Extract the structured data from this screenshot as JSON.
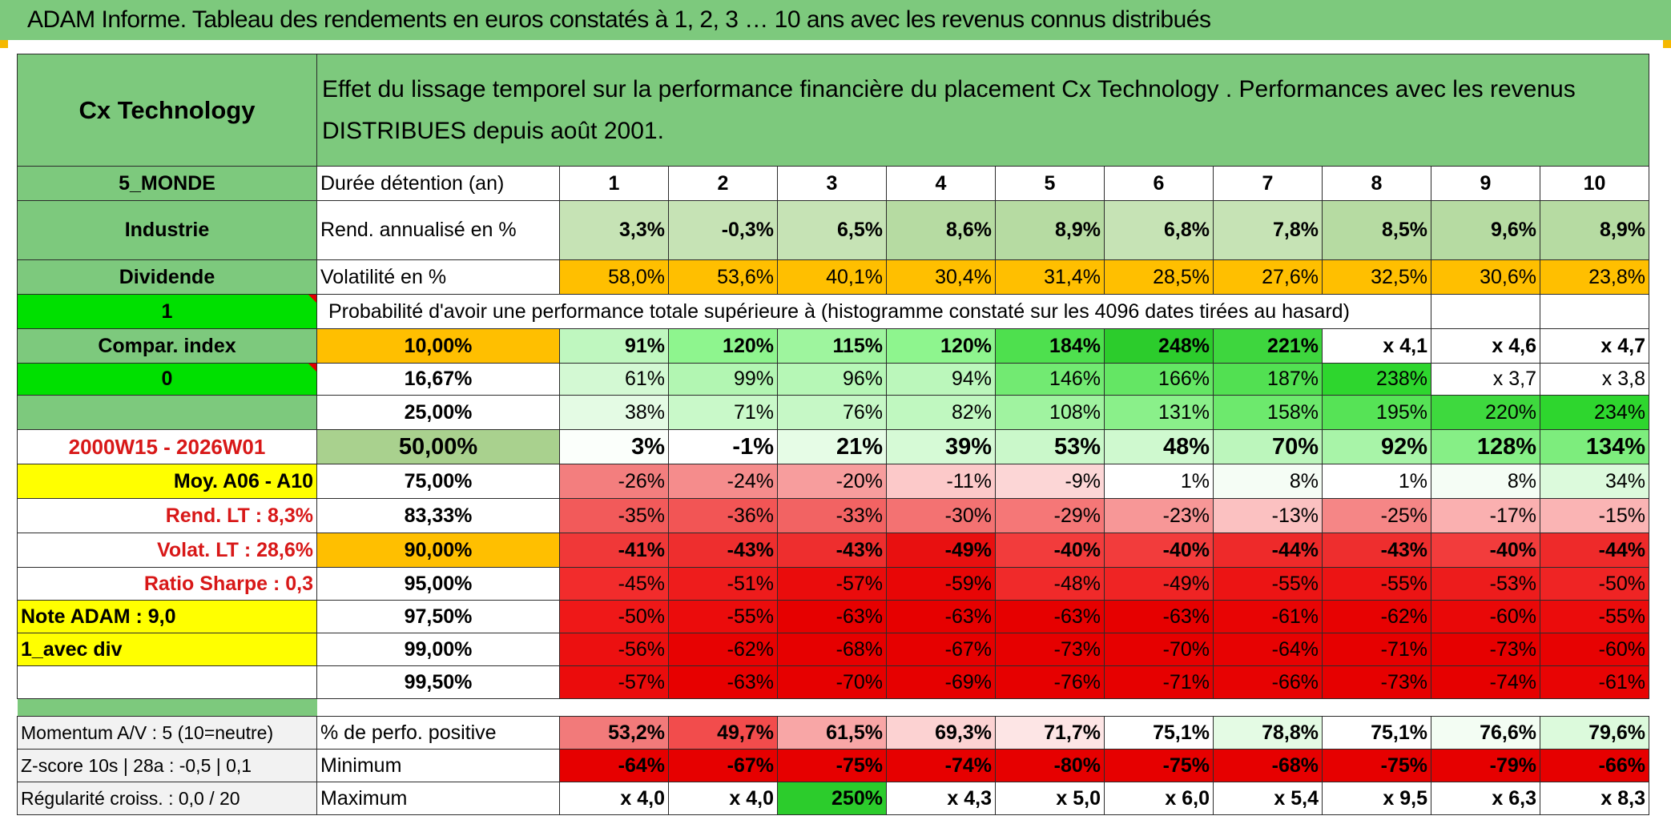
{
  "title": "ADAM Informe. Tableau des rendements en euros constatés à 1, 2, 3 … 10 ans avec les revenus connus distribués",
  "header": {
    "fund_name": "Cx Technology",
    "description": "Effet du lissage temporel sur la performance financière du placement Cx Technology . Performances avec les revenus DISTRIBUES depuis août 2001."
  },
  "sidebar": {
    "zone": "5_MONDE",
    "sector": "Industrie",
    "distribution": "Dividende",
    "flag1": "1",
    "compar_label": "Compar. index",
    "flag0": "0",
    "period": "2000W15 - 2026W01",
    "avg_label": "Moy. A06 - A10",
    "rend_lt": "Rend. LT :   8,3%",
    "volat_lt": "Volat. LT :   28,6%",
    "sharpe": "Ratio Sharpe :    0,3",
    "note": "Note ADAM : 9,0",
    "variant": "1_avec div"
  },
  "rows": {
    "duration_label": "Durée détention (an)",
    "years": [
      "1",
      "2",
      "3",
      "4",
      "5",
      "6",
      "7",
      "8",
      "9",
      "10"
    ],
    "rend_label": "Rend. annualisé en %",
    "rend": [
      "3,3%",
      "-0,3%",
      "6,5%",
      "8,6%",
      "8,9%",
      "6,8%",
      "7,8%",
      "8,5%",
      "9,6%",
      "8,9%"
    ],
    "vol_label": "Volatilité en %",
    "vol": [
      "58,0%",
      "53,6%",
      "40,1%",
      "30,4%",
      "31,4%",
      "28,5%",
      "27,6%",
      "32,5%",
      "30,6%",
      "23,8%"
    ],
    "prob_header": "Probabilité d'avoir une performance totale supérieure à (histogramme constaté sur les 4096 dates tirées au hasard)"
  },
  "quantiles": [
    {
      "pct": "10,00%",
      "vals": [
        "91%",
        "120%",
        "115%",
        "120%",
        "184%",
        "248%",
        "221%",
        "x 4,1",
        "x 4,6",
        "x 4,7"
      ]
    },
    {
      "pct": "16,67%",
      "vals": [
        "61%",
        "99%",
        "96%",
        "94%",
        "146%",
        "166%",
        "187%",
        "238%",
        "x 3,7",
        "x 3,8"
      ]
    },
    {
      "pct": "25,00%",
      "vals": [
        "38%",
        "71%",
        "76%",
        "82%",
        "108%",
        "131%",
        "158%",
        "195%",
        "220%",
        "234%"
      ]
    },
    {
      "pct": "50,00%",
      "vals": [
        "3%",
        "-1%",
        "21%",
        "39%",
        "53%",
        "48%",
        "70%",
        "92%",
        "128%",
        "134%"
      ]
    },
    {
      "pct": "75,00%",
      "vals": [
        "-26%",
        "-24%",
        "-20%",
        "-11%",
        "-9%",
        "1%",
        "8%",
        "1%",
        "8%",
        "34%"
      ]
    },
    {
      "pct": "83,33%",
      "vals": [
        "-35%",
        "-36%",
        "-33%",
        "-30%",
        "-29%",
        "-23%",
        "-13%",
        "-25%",
        "-17%",
        "-15%"
      ]
    },
    {
      "pct": "90,00%",
      "vals": [
        "-41%",
        "-43%",
        "-43%",
        "-49%",
        "-40%",
        "-40%",
        "-44%",
        "-43%",
        "-40%",
        "-44%"
      ]
    },
    {
      "pct": "95,00%",
      "vals": [
        "-45%",
        "-51%",
        "-57%",
        "-59%",
        "-48%",
        "-49%",
        "-55%",
        "-55%",
        "-53%",
        "-50%"
      ]
    },
    {
      "pct": "97,50%",
      "vals": [
        "-50%",
        "-55%",
        "-63%",
        "-63%",
        "-63%",
        "-63%",
        "-61%",
        "-62%",
        "-60%",
        "-55%"
      ]
    },
    {
      "pct": "99,00%",
      "vals": [
        "-56%",
        "-62%",
        "-68%",
        "-67%",
        "-73%",
        "-70%",
        "-64%",
        "-71%",
        "-73%",
        "-60%"
      ]
    },
    {
      "pct": "99,50%",
      "vals": [
        "-57%",
        "-63%",
        "-70%",
        "-69%",
        "-76%",
        "-71%",
        "-66%",
        "-73%",
        "-74%",
        "-61%"
      ]
    }
  ],
  "bottom": {
    "momentum": "Momentum A/V : 5 (10=neutre)",
    "zscore": "Z-score 10s | 28a : -0,5 | 0,1",
    "regularity": "Régularité croiss. : 0,0 / 20",
    "pos_label": "% de perfo. positive",
    "pos": [
      "53,2%",
      "49,7%",
      "61,5%",
      "69,3%",
      "71,7%",
      "75,1%",
      "78,8%",
      "75,1%",
      "76,6%",
      "79,6%"
    ],
    "min_label": "Minimum",
    "min": [
      "-64%",
      "-67%",
      "-75%",
      "-74%",
      "-80%",
      "-75%",
      "-68%",
      "-75%",
      "-79%",
      "-66%"
    ],
    "max_label": "Maximum",
    "max": [
      "x 4,0",
      "x 4,0",
      "250%",
      "x 4,3",
      "x 5,0",
      "x 6,0",
      "x 5,4",
      "x 9,5",
      "x 6,3",
      "x 8,3"
    ]
  },
  "colors": {
    "header_green": "#7dc97d",
    "yellow": "#ffff00",
    "orange": "#ffbf00",
    "positive_green": "#00e000",
    "negative_red": "#ff0000",
    "label_red": "#d81818"
  },
  "quantile_fills": [
    [
      "#bff7bf",
      "#8ef58e",
      "#9ef59e",
      "#8ef58e",
      "#4ee04e",
      "#2ccc2c",
      "#3ed63e",
      "#ffffff",
      "#ffffff",
      "#ffffff"
    ],
    [
      "#d3f9d3",
      "#b2f6b2",
      "#b6f7b6",
      "#bbf7bb",
      "#72ea72",
      "#64e664",
      "#52e052",
      "#2ed62e",
      "#ffffff",
      "#ffffff"
    ],
    [
      "#e4fbe4",
      "#c9f9c9",
      "#c6f8c6",
      "#c0f8c0",
      "#a0f3a0",
      "#8af08a",
      "#6de96d",
      "#56e356",
      "#3ed93e",
      "#2ed62e"
    ],
    [
      "#fbfffb",
      "#ffffff",
      "#e6fce6",
      "#d6fad6",
      "#caf8ca",
      "#cff9cf",
      "#bcf6bc",
      "#a8f4a8",
      "#86ef86",
      "#7ded7d"
    ],
    [
      "#f37e7e",
      "#f58c8c",
      "#f79d9d",
      "#fcc9c9",
      "#fcd6d6",
      "#ffffff",
      "#f5fdf5",
      "#ffffff",
      "#f5fdf5",
      "#dcfadc"
    ],
    [
      "#f25a5a",
      "#f25555",
      "#f26363",
      "#f37272",
      "#f57777",
      "#f79797",
      "#fbc1c1",
      "#f58686",
      "#fab0b0",
      "#fab4b4"
    ],
    [
      "#f03838",
      "#ee2e2e",
      "#ee2e2e",
      "#e81010",
      "#f23c3c",
      "#f23c3c",
      "#ee2a2a",
      "#ee2e2e",
      "#f23c3c",
      "#ee2a2a"
    ],
    [
      "#f22c2c",
      "#ee1c1c",
      "#ea0c0c",
      "#e80606",
      "#f02a2a",
      "#ef2424",
      "#ec1414",
      "#ec1414",
      "#ed1c1c",
      "#ef2424"
    ],
    [
      "#ef1818",
      "#eb0c0c",
      "#e60000",
      "#e60000",
      "#e60000",
      "#e60000",
      "#e80404",
      "#e70202",
      "#e90808",
      "#eb0c0c"
    ],
    [
      "#ec1010",
      "#e70202",
      "#e60000",
      "#e60000",
      "#e60000",
      "#e60000",
      "#e70202",
      "#e60000",
      "#e60000",
      "#e70202"
    ],
    [
      "#eb0c0c",
      "#e70000",
      "#e60000",
      "#e60000",
      "#e60000",
      "#e60000",
      "#e70202",
      "#e60000",
      "#e60000",
      "#e80404"
    ]
  ],
  "pos_fills": [
    "#f27a7a",
    "#f24c4c",
    "#f8a6a6",
    "#fcd2d2",
    "#fde5e5",
    "#ffffff",
    "#e4fbe4",
    "#ffffff",
    "#f3fdf3",
    "#dcfadc"
  ],
  "min_fill": "#e60000",
  "max_fills": [
    "#ffffff",
    "#ffffff",
    "#2ccc2c",
    "#ffffff",
    "#ffffff",
    "#ffffff",
    "#ffffff",
    "#ffffff",
    "#ffffff",
    "#ffffff"
  ],
  "rend_fills": [
    "#c6e3b5",
    "#c6e3b5",
    "#c6e3b5",
    "#b6dba2",
    "#b6dba2",
    "#c6e3b5",
    "#c6e3b5",
    "#b6dba2",
    "#b6dba2",
    "#b6dba2"
  ]
}
